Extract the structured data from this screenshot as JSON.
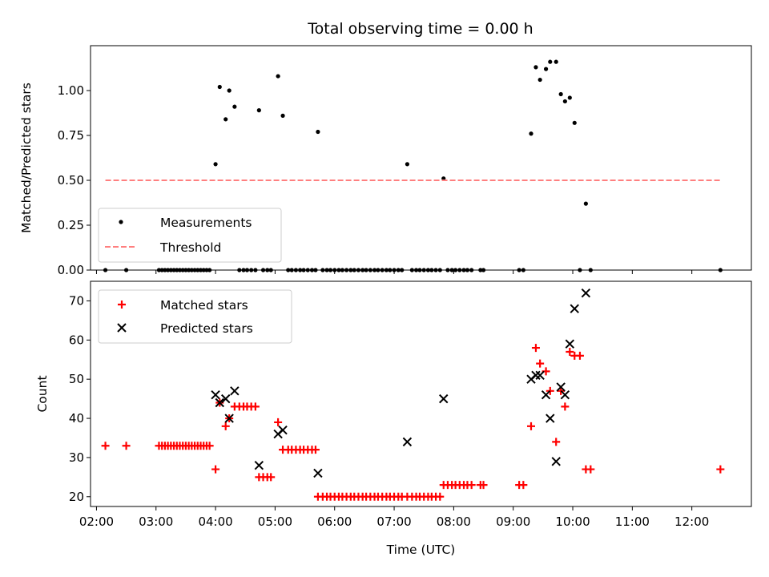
{
  "chart_data": [
    {
      "type": "scatter",
      "panel": "top",
      "title": "Total observing time = 0.00 h",
      "xlabel": "",
      "ylabel": "Matched/Predicted stars",
      "x_unit": "hours (UTC)",
      "xlim": [
        1.9,
        13.0
      ],
      "ylim": [
        0,
        1.25
      ],
      "yticks": [
        "0.00",
        "0.25",
        "0.50",
        "0.75",
        "1.00"
      ],
      "xticks": [
        "02:00",
        "03:00",
        "04:00",
        "05:00",
        "06:00",
        "07:00",
        "08:00",
        "09:00",
        "10:00",
        "11:00",
        "12:00"
      ],
      "show_x_ticklabels": false,
      "grid": false,
      "legend": "lower-left",
      "series": [
        {
          "name": "Measurements",
          "kind": "points",
          "color": "#000000",
          "x": [
            4.0,
            4.07,
            4.17,
            4.23,
            4.32,
            4.73,
            5.05,
            5.13,
            5.72,
            7.22,
            7.83,
            9.3,
            9.38,
            9.45,
            9.55,
            9.62,
            9.72,
            9.8,
            9.87,
            9.95,
            10.03,
            10.22,
            2.15,
            2.5,
            3.05,
            3.1,
            3.15,
            3.2,
            3.25,
            3.3,
            3.35,
            3.4,
            3.45,
            3.5,
            3.55,
            3.6,
            3.65,
            3.7,
            3.75,
            3.8,
            3.85,
            3.9,
            4.4,
            4.47,
            4.53,
            4.6,
            4.67,
            4.8,
            4.87,
            4.93,
            5.22,
            5.28,
            5.35,
            5.42,
            5.48,
            5.55,
            5.62,
            5.68,
            5.8,
            5.87,
            5.93,
            6.0,
            6.07,
            6.13,
            6.2,
            6.27,
            6.33,
            6.4,
            6.47,
            6.53,
            6.6,
            6.67,
            6.73,
            6.8,
            6.87,
            6.93,
            7.0,
            7.07,
            7.13,
            7.3,
            7.37,
            7.43,
            7.5,
            7.57,
            7.63,
            7.7,
            7.77,
            7.9,
            7.97,
            8.03,
            8.1,
            8.17,
            8.23,
            8.3,
            8.45,
            8.5,
            9.1,
            9.17,
            10.12,
            10.3,
            12.48
          ],
          "y": [
            0.59,
            1.02,
            0.84,
            1.0,
            0.91,
            0.89,
            1.08,
            0.86,
            0.77,
            0.59,
            0.51,
            0.76,
            1.13,
            1.06,
            1.12,
            1.16,
            1.16,
            0.98,
            0.94,
            0.96,
            0.82,
            0.37,
            0,
            0,
            0,
            0,
            0,
            0,
            0,
            0,
            0,
            0,
            0,
            0,
            0,
            0,
            0,
            0,
            0,
            0,
            0,
            0,
            0,
            0,
            0,
            0,
            0,
            0,
            0,
            0,
            0,
            0,
            0,
            0,
            0,
            0,
            0,
            0,
            0,
            0,
            0,
            0,
            0,
            0,
            0,
            0,
            0,
            0,
            0,
            0,
            0,
            0,
            0,
            0,
            0,
            0,
            0,
            0,
            0,
            0,
            0,
            0,
            0,
            0,
            0,
            0,
            0,
            0,
            0,
            0,
            0,
            0,
            0,
            0,
            0,
            0,
            0,
            0,
            0,
            0,
            0
          ]
        },
        {
          "name": "Threshold",
          "kind": "dashed-line",
          "color": "#ff7f7f",
          "x": [
            2.15,
            12.48
          ],
          "y": [
            0.5,
            0.5
          ]
        }
      ]
    },
    {
      "type": "scatter",
      "panel": "bottom",
      "title": "",
      "xlabel": "Time (UTC)",
      "ylabel": "Count",
      "x_unit": "hours (UTC)",
      "xlim": [
        1.9,
        13.0
      ],
      "ylim": [
        17.5,
        75
      ],
      "yticks": [
        "20",
        "30",
        "40",
        "50",
        "60",
        "70"
      ],
      "xticks": [
        "02:00",
        "03:00",
        "04:00",
        "05:00",
        "06:00",
        "07:00",
        "08:00",
        "09:00",
        "10:00",
        "11:00",
        "12:00"
      ],
      "show_x_ticklabels": true,
      "grid": false,
      "legend": "top-left",
      "series": [
        {
          "name": "Matched stars",
          "marker": "plus",
          "color": "#ff0000",
          "x": [
            2.15,
            2.5,
            3.05,
            3.1,
            3.15,
            3.2,
            3.25,
            3.3,
            3.35,
            3.4,
            3.45,
            3.5,
            3.55,
            3.6,
            3.65,
            3.7,
            3.75,
            3.8,
            3.85,
            3.9,
            4.0,
            4.07,
            4.17,
            4.23,
            4.32,
            4.4,
            4.47,
            4.53,
            4.6,
            4.67,
            4.73,
            4.8,
            4.87,
            4.93,
            5.05,
            5.13,
            5.22,
            5.28,
            5.35,
            5.42,
            5.48,
            5.55,
            5.62,
            5.68,
            5.72,
            5.8,
            5.87,
            5.93,
            6.0,
            6.07,
            6.13,
            6.2,
            6.27,
            6.33,
            6.4,
            6.47,
            6.53,
            6.6,
            6.67,
            6.73,
            6.8,
            6.87,
            6.93,
            7.0,
            7.07,
            7.13,
            7.22,
            7.3,
            7.37,
            7.43,
            7.5,
            7.57,
            7.63,
            7.7,
            7.77,
            7.83,
            7.9,
            7.97,
            8.03,
            8.1,
            8.17,
            8.23,
            8.3,
            8.45,
            8.5,
            9.1,
            9.17,
            9.3,
            9.38,
            9.45,
            9.55,
            9.62,
            9.72,
            9.8,
            9.87,
            9.95,
            10.03,
            10.12,
            10.22,
            10.3,
            12.48
          ],
          "y": [
            33,
            33,
            33,
            33,
            33,
            33,
            33,
            33,
            33,
            33,
            33,
            33,
            33,
            33,
            33,
            33,
            33,
            33,
            33,
            33,
            27,
            44,
            38,
            40,
            43,
            43,
            43,
            43,
            43,
            43,
            25,
            25,
            25,
            25,
            39,
            32,
            32,
            32,
            32,
            32,
            32,
            32,
            32,
            32,
            20,
            20,
            20,
            20,
            20,
            20,
            20,
            20,
            20,
            20,
            20,
            20,
            20,
            20,
            20,
            20,
            20,
            20,
            20,
            20,
            20,
            20,
            20,
            20,
            20,
            20,
            20,
            20,
            20,
            20,
            20,
            23,
            23,
            23,
            23,
            23,
            23,
            23,
            23,
            23,
            23,
            23,
            23,
            38,
            58,
            54,
            52,
            47,
            34,
            47,
            43,
            57,
            56,
            56,
            27,
            27,
            27
          ]
        },
        {
          "name": "Predicted stars",
          "marker": "x",
          "color": "#000000",
          "x": [
            4.0,
            4.07,
            4.17,
            4.23,
            4.32,
            4.73,
            5.05,
            5.13,
            5.72,
            7.22,
            7.83,
            9.3,
            9.38,
            9.45,
            9.55,
            9.62,
            9.72,
            9.8,
            9.87,
            9.95,
            10.03,
            10.22
          ],
          "y": [
            46,
            44,
            45,
            40,
            47,
            28,
            36,
            37,
            26,
            34,
            45,
            50,
            51,
            51,
            46,
            40,
            29,
            48,
            46,
            59,
            68,
            72
          ]
        }
      ]
    }
  ]
}
